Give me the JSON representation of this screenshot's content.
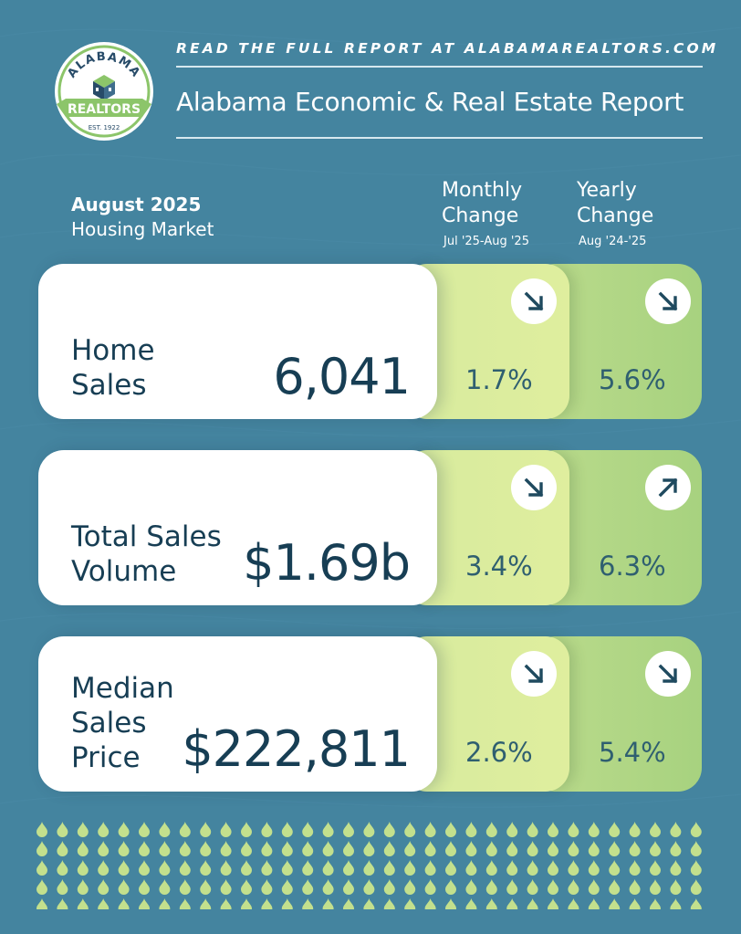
{
  "logo": {
    "arc_text": "ALABAMA",
    "banner_text": "REALTORS",
    "est_text": "EST. 1922"
  },
  "header": {
    "tagline": "READ THE FULL REPORT AT ALABAMAREALTORS.COM",
    "title": "Alabama Economic & Real Estate Report"
  },
  "period": {
    "month": "August 2025",
    "subtitle": "Housing Market"
  },
  "columns": {
    "monthly": {
      "title": "Monthly\nChange",
      "range": "Jul '25-Aug '25"
    },
    "yearly": {
      "title": "Yearly\nChange",
      "range": "Aug '24-'25"
    }
  },
  "metrics": [
    {
      "label": "Home\nSales",
      "value": "6,041",
      "monthly_change": "1.7%",
      "monthly_direction": "down",
      "yearly_change": "5.6%",
      "yearly_direction": "down"
    },
    {
      "label": "Total Sales\nVolume",
      "value": "$1.69b",
      "monthly_change": "3.4%",
      "monthly_direction": "down",
      "yearly_change": "6.3%",
      "yearly_direction": "up"
    },
    {
      "label": "Median\nSales\nPrice",
      "value": "$222,811",
      "monthly_change": "2.6%",
      "monthly_direction": "down",
      "yearly_change": "5.4%",
      "yearly_direction": "down"
    }
  ],
  "colors": {
    "background": "#44849f",
    "card_text": "#173e54",
    "monthly_panel": "#dbec9e",
    "yearly_panel": "#b3d785",
    "drops": "#c3e08d",
    "logo_green": "#8cc56a",
    "logo_navy": "#274b68"
  },
  "icons": {
    "arrow_down": "arrow-down-right-icon",
    "arrow_up": "arrow-up-right-icon"
  }
}
